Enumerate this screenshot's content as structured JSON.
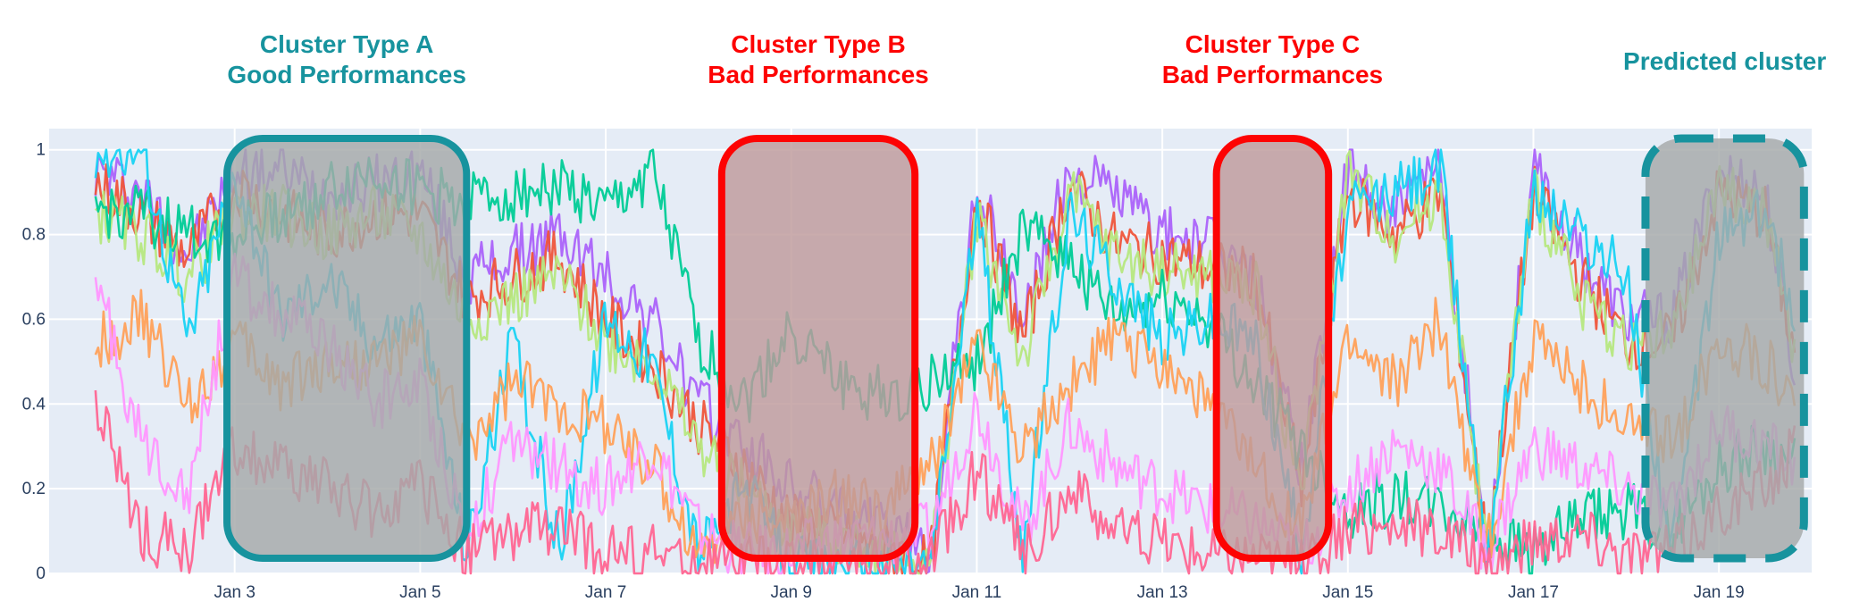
{
  "chart_data": {
    "type": "line",
    "xlim": [
      "2024-01-01",
      "2024-01-20"
    ],
    "ylim": [
      0,
      1.05
    ],
    "grid": true,
    "legend": "none",
    "background": "#e5ecf6",
    "x_ticks": [
      {
        "label": "Jan 3",
        "date": "2024-01-03"
      },
      {
        "label": "Jan 5",
        "date": "2024-01-05"
      },
      {
        "label": "Jan 7",
        "date": "2024-01-07"
      },
      {
        "label": "Jan 9",
        "date": "2024-01-09"
      },
      {
        "label": "Jan 11",
        "date": "2024-01-11"
      },
      {
        "label": "Jan 13",
        "date": "2024-01-13"
      },
      {
        "label": "Jan 15",
        "date": "2024-01-15"
      },
      {
        "label": "Jan 17",
        "date": "2024-01-17"
      },
      {
        "label": "Jan 19",
        "date": "2024-01-19"
      }
    ],
    "y_ticks": [
      {
        "label": "0",
        "value": 0
      },
      {
        "label": "0.2",
        "value": 0.2
      },
      {
        "label": "0.4",
        "value": 0.4
      },
      {
        "label": "0.6",
        "value": 0.6
      },
      {
        "label": "0.8",
        "value": 0.8
      },
      {
        "label": "1",
        "value": 1
      }
    ],
    "x": [
      "Jan 1 12:00",
      "Jan 2",
      "Jan 2 12:00",
      "Jan 3",
      "Jan 3 12:00",
      "Jan 4",
      "Jan 4 12:00",
      "Jan 5",
      "Jan 5 12:00",
      "Jan 6",
      "Jan 6 12:00",
      "Jan 7",
      "Jan 7 12:00",
      "Jan 8",
      "Jan 8 12:00",
      "Jan 9",
      "Jan 9 12:00",
      "Jan 10",
      "Jan 10 12:00",
      "Jan 11",
      "Jan 11 12:00",
      "Jan 12",
      "Jan 12 12:00",
      "Jan 13",
      "Jan 13 12:00",
      "Jan 14",
      "Jan 14 12:00",
      "Jan 15",
      "Jan 15 12:00",
      "Jan 16",
      "Jan 16 12:00",
      "Jan 17",
      "Jan 17 12:00",
      "Jan 18",
      "Jan 18 12:00",
      "Jan 19",
      "Jan 19 12:00",
      "Jan 19 20:00"
    ],
    "series": [
      {
        "color": "#ab63fa",
        "values": [
          0.95,
          0.9,
          0.75,
          0.95,
          0.95,
          0.9,
          0.92,
          0.95,
          0.7,
          0.75,
          0.8,
          0.7,
          0.6,
          0.4,
          0.3,
          0.2,
          0.15,
          0.1,
          0.05,
          0.92,
          0.6,
          0.95,
          0.9,
          0.8,
          0.78,
          0.7,
          0.25,
          0.95,
          0.85,
          0.95,
          0.05,
          0.95,
          0.75,
          0.6,
          0.6,
          0.95,
          0.9,
          0.45
        ]
      },
      {
        "color": "#ef553b",
        "values": [
          0.92,
          0.85,
          0.75,
          0.92,
          0.85,
          0.8,
          0.85,
          0.85,
          0.65,
          0.7,
          0.75,
          0.6,
          0.5,
          0.35,
          0.25,
          0.12,
          0.1,
          0.05,
          0.02,
          0.9,
          0.55,
          0.92,
          0.78,
          0.75,
          0.72,
          0.7,
          0.2,
          0.9,
          0.8,
          0.9,
          0.05,
          0.9,
          0.7,
          0.55,
          0.55,
          0.9,
          0.85,
          0.5
        ]
      },
      {
        "color": "#b6e880",
        "values": [
          0.85,
          0.8,
          0.7,
          0.85,
          0.85,
          0.8,
          0.85,
          0.8,
          0.6,
          0.65,
          0.7,
          0.55,
          0.5,
          0.3,
          0.2,
          0.1,
          0.08,
          0.05,
          0.02,
          0.85,
          0.5,
          0.9,
          0.75,
          0.72,
          0.7,
          0.68,
          0.2,
          0.95,
          0.8,
          0.9,
          0.05,
          0.9,
          0.65,
          0.55,
          0.55,
          0.92,
          0.85,
          0.5
        ]
      },
      {
        "color": "#00cc96",
        "values": [
          0.85,
          0.85,
          0.8,
          0.8,
          0.85,
          0.9,
          0.95,
          0.9,
          0.88,
          0.9,
          0.92,
          0.85,
          0.95,
          0.55,
          0.4,
          0.58,
          0.45,
          0.42,
          0.45,
          0.5,
          0.8,
          0.75,
          0.6,
          0.65,
          0.6,
          0.45,
          0.3,
          0.15,
          0.18,
          0.15,
          0.1,
          0.05,
          0.12,
          0.15,
          0.1,
          0.25,
          0.3,
          0.25
        ]
      },
      {
        "color": "#19d3f3",
        "values": [
          1.0,
          1.0,
          0.55,
          0.95,
          0.6,
          0.7,
          0.55,
          0.6,
          0.05,
          0.55,
          0.05,
          0.6,
          0.5,
          0.05,
          0.2,
          0.02,
          0.02,
          0.02,
          0.02,
          0.85,
          0.05,
          0.85,
          0.7,
          0.55,
          0.6,
          0.55,
          0.05,
          0.85,
          0.9,
          0.95,
          0.05,
          0.9,
          0.8,
          0.7,
          0.05,
          0.8,
          0.85,
          0.6
        ]
      },
      {
        "color": "#ffa15a",
        "values": [
          0.55,
          0.6,
          0.4,
          0.55,
          0.45,
          0.5,
          0.5,
          0.55,
          0.3,
          0.45,
          0.4,
          0.35,
          0.25,
          0.05,
          0.15,
          0.12,
          0.18,
          0.15,
          0.25,
          0.55,
          0.3,
          0.45,
          0.55,
          0.5,
          0.4,
          0.25,
          0.1,
          0.55,
          0.45,
          0.6,
          0.05,
          0.55,
          0.45,
          0.35,
          0.3,
          0.55,
          0.5,
          0.4
        ]
      },
      {
        "color": "#ff97ff",
        "values": [
          0.7,
          0.3,
          0.2,
          0.7,
          0.6,
          0.55,
          0.4,
          0.45,
          0.1,
          0.3,
          0.25,
          0.2,
          0.3,
          0.1,
          0.05,
          0.05,
          0.08,
          0.08,
          0.1,
          0.4,
          0.1,
          0.35,
          0.25,
          0.2,
          0.15,
          0.12,
          0.05,
          0.2,
          0.3,
          0.25,
          0.05,
          0.3,
          0.25,
          0.2,
          0.15,
          0.35,
          0.3,
          0.25
        ]
      },
      {
        "color": "#ff6692",
        "values": [
          0.4,
          0.1,
          0.05,
          0.3,
          0.25,
          0.2,
          0.15,
          0.2,
          0.05,
          0.1,
          0.1,
          0.05,
          0.05,
          0.02,
          0.02,
          0.02,
          0.02,
          0.02,
          0.02,
          0.25,
          0.05,
          0.2,
          0.1,
          0.08,
          0.05,
          0.05,
          0.02,
          0.1,
          0.12,
          0.1,
          0.02,
          0.08,
          0.1,
          0.05,
          0.05,
          0.15,
          0.2,
          0.3
        ]
      }
    ],
    "annotations": [
      {
        "lines": [
          "Cluster Type A",
          "Good Performances"
        ],
        "color": "#17939e",
        "start": "Jan 2 22:00",
        "end": "Jan 5 12:00",
        "style": "solid",
        "fill": "#a5a8a8"
      },
      {
        "lines": [
          "Cluster Type B",
          "Bad Performances"
        ],
        "color": "#fd0303",
        "start": "Jan 8 06:00",
        "end": "Jan 10 08:00",
        "style": "solid",
        "fill": "#be9a9b"
      },
      {
        "lines": [
          "Cluster Type C",
          "Bad Performances"
        ],
        "color": "#fd0303",
        "start": "Jan 13 14:00",
        "end": "Jan 14 19:00",
        "style": "solid",
        "fill": "#be9a9b"
      },
      {
        "lines": [
          "Predicted cluster"
        ],
        "color": "#17939e",
        "start": "Jan 18 05:00",
        "end": "Jan 19 22:00",
        "style": "dashed",
        "fill": "#a5a8a8"
      }
    ]
  }
}
